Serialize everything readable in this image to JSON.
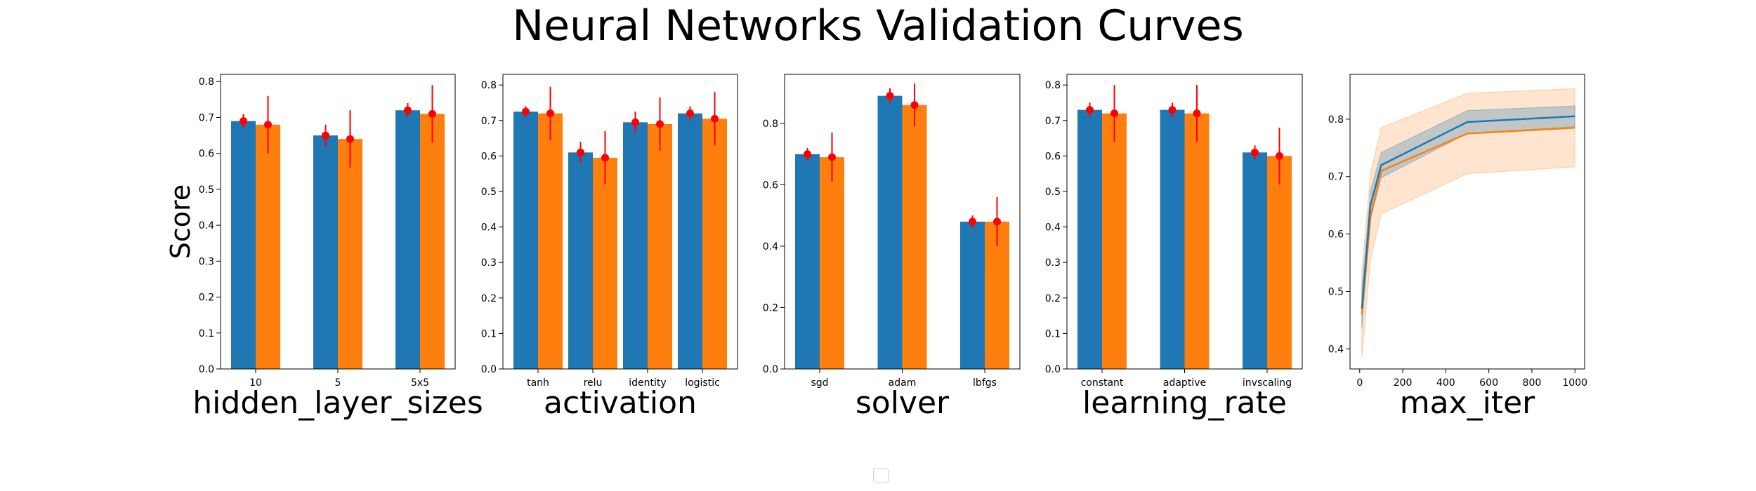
{
  "title": "Neural Networks Validation Curves",
  "colors": {
    "train": "#1f77b4",
    "test": "#ff7f0e",
    "error": "#ff0000"
  },
  "chart_data": [
    {
      "type": "bar",
      "xlabel": "hidden_layer_sizes",
      "ylabel": "Score",
      "ylim": [
        0,
        0.82
      ],
      "yticks": [
        0.0,
        0.1,
        0.2,
        0.3,
        0.4,
        0.5,
        0.6,
        0.7,
        0.8
      ],
      "categories": [
        "10",
        "5",
        "5x5"
      ],
      "series": [
        {
          "values": [
            0.69,
            0.65,
            0.72
          ],
          "errors": [
            0.02,
            0.03,
            0.02
          ]
        },
        {
          "values": [
            0.68,
            0.64,
            0.71
          ],
          "errors": [
            0.08,
            0.08,
            0.08
          ]
        }
      ]
    },
    {
      "type": "bar",
      "xlabel": "activation",
      "ylim": [
        0,
        0.83
      ],
      "yticks": [
        0.0,
        0.1,
        0.2,
        0.3,
        0.4,
        0.5,
        0.6,
        0.7,
        0.8
      ],
      "categories": [
        "tanh",
        "relu",
        "identity",
        "logistic"
      ],
      "series": [
        {
          "values": [
            0.725,
            0.61,
            0.695,
            0.72
          ],
          "errors": [
            0.015,
            0.03,
            0.03,
            0.02
          ]
        },
        {
          "values": [
            0.72,
            0.595,
            0.69,
            0.705
          ],
          "errors": [
            0.075,
            0.075,
            0.075,
            0.075
          ]
        }
      ]
    },
    {
      "type": "bar",
      "xlabel": "solver",
      "ylim": [
        0,
        0.96
      ],
      "yticks": [
        0.0,
        0.2,
        0.4,
        0.6,
        0.8
      ],
      "categories": [
        "sgd",
        "adam",
        "lbfgs"
      ],
      "series": [
        {
          "values": [
            0.7,
            0.89,
            0.48
          ],
          "errors": [
            0.02,
            0.025,
            0.02
          ]
        },
        {
          "values": [
            0.69,
            0.86,
            0.48
          ],
          "errors": [
            0.08,
            0.07,
            0.08
          ]
        }
      ]
    },
    {
      "type": "bar",
      "xlabel": "learning_rate",
      "ylim": [
        0,
        0.83
      ],
      "yticks": [
        0.0,
        0.1,
        0.2,
        0.3,
        0.4,
        0.5,
        0.6,
        0.7,
        0.8
      ],
      "categories": [
        "constant",
        "adaptive",
        "invscaling"
      ],
      "series": [
        {
          "values": [
            0.73,
            0.73,
            0.61
          ],
          "errors": [
            0.02,
            0.02,
            0.02
          ]
        },
        {
          "values": [
            0.72,
            0.72,
            0.6
          ],
          "errors": [
            0.08,
            0.08,
            0.08
          ]
        }
      ]
    },
    {
      "type": "line",
      "xlabel": "max_iter",
      "xlim": [
        -45,
        1045
      ],
      "ylim": [
        0.365,
        0.878
      ],
      "xticks": [
        0,
        200,
        400,
        600,
        800,
        1000
      ],
      "yticks": [
        0.4,
        0.5,
        0.6,
        0.7,
        0.8
      ],
      "x": [
        10,
        50,
        100,
        500,
        1000
      ],
      "series": [
        {
          "values": [
            0.47,
            0.65,
            0.72,
            0.795,
            0.805
          ],
          "band": [
            0.035,
            0.025,
            0.022,
            0.02,
            0.018
          ]
        },
        {
          "values": [
            0.46,
            0.63,
            0.71,
            0.775,
            0.785
          ],
          "band": [
            0.075,
            0.075,
            0.075,
            0.07,
            0.068
          ]
        }
      ]
    }
  ]
}
